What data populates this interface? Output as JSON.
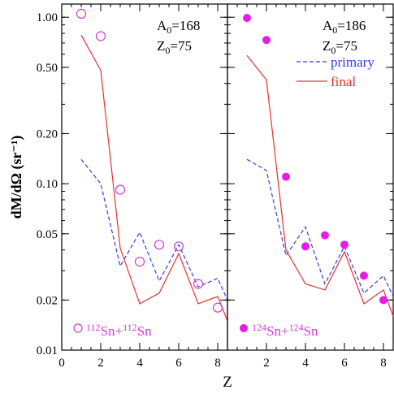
{
  "chart_data": [
    {
      "type": "line",
      "panel": "left",
      "annotation_lines": [
        {
          "id": "A0",
          "main": "A",
          "sub": "0",
          "value": "=168"
        },
        {
          "id": "Z0",
          "main": "Z",
          "sub": "0",
          "value": "=75"
        }
      ],
      "system": {
        "mass1": "112",
        "el1": "Sn",
        "plus": "+",
        "mass2": "112",
        "el2": "Sn"
      },
      "xlabel": "Z",
      "ylabel": "dM/dΩ (sr⁻¹)",
      "xlim": [
        0,
        8.5
      ],
      "ylim": [
        0.01,
        1.2
      ],
      "yscale": "log",
      "xticks": [
        0,
        2,
        4,
        6,
        8
      ],
      "yticks": [
        {
          "value": 0.01,
          "label": "0.01"
        },
        {
          "value": 0.02,
          "label": "0.02"
        },
        {
          "value": 0.05,
          "label": "0.05"
        },
        {
          "value": 0.1,
          "label": "0.10"
        },
        {
          "value": 0.2,
          "label": "0.20"
        },
        {
          "value": 0.5,
          "label": "0.50"
        },
        {
          "value": 1.0,
          "label": "1.00"
        }
      ],
      "series": [
        {
          "style": "primary",
          "color": "#3b3bdc",
          "dash": true,
          "x": [
            1,
            2,
            3,
            4,
            5,
            6,
            7,
            8,
            8.5
          ],
          "y": [
            0.14,
            0.1,
            0.032,
            0.051,
            0.026,
            0.043,
            0.024,
            0.027,
            0.02
          ]
        },
        {
          "style": "final",
          "color": "#e83030",
          "dash": false,
          "x": [
            1,
            2,
            3,
            4,
            5,
            6,
            7,
            8,
            8.5
          ],
          "y": [
            0.78,
            0.48,
            0.041,
            0.019,
            0.022,
            0.038,
            0.019,
            0.021,
            0.015
          ]
        }
      ],
      "points": {
        "color": "#d63ad6",
        "filled": false,
        "x": [
          1,
          2,
          3,
          4,
          5,
          6,
          7,
          8
        ],
        "y": [
          1.05,
          0.77,
          0.092,
          0.034,
          0.043,
          0.042,
          0.025,
          0.018
        ]
      }
    },
    {
      "type": "line",
      "panel": "right",
      "annotation_lines": [
        {
          "id": "A0",
          "main": "A",
          "sub": "0",
          "value": "=186"
        },
        {
          "id": "Z0",
          "main": "Z",
          "sub": "0",
          "value": "=75"
        }
      ],
      "system": {
        "mass1": "124",
        "el1": "Sn",
        "plus": "+",
        "mass2": "124",
        "el2": "Sn"
      },
      "legend": [
        {
          "label": "primary",
          "color": "#3b3bdc",
          "dash": true
        },
        {
          "label": "final",
          "color": "#e83030",
          "dash": false
        }
      ],
      "xlabel": "Z",
      "xlim": [
        0,
        8.5
      ],
      "ylim": [
        0.01,
        1.2
      ],
      "yscale": "log",
      "xticks": [
        2,
        4,
        6,
        8
      ],
      "series": [
        {
          "style": "primary",
          "color": "#3b3bdc",
          "dash": true,
          "x": [
            1,
            2,
            3,
            4,
            5,
            6,
            7,
            8,
            8.5
          ],
          "y": [
            0.14,
            0.12,
            0.037,
            0.055,
            0.025,
            0.042,
            0.022,
            0.028,
            0.021
          ]
        },
        {
          "style": "final",
          "color": "#e83030",
          "dash": false,
          "x": [
            1,
            2,
            3,
            4,
            5,
            6,
            7,
            8,
            8.5
          ],
          "y": [
            0.59,
            0.42,
            0.04,
            0.025,
            0.023,
            0.039,
            0.019,
            0.023,
            0.016
          ]
        }
      ],
      "points": {
        "color": "#e61be6",
        "filled": true,
        "x": [
          1,
          2,
          3,
          4,
          5,
          6,
          7,
          8
        ],
        "y": [
          0.99,
          0.73,
          0.11,
          0.042,
          0.049,
          0.043,
          0.028,
          0.02
        ]
      }
    }
  ]
}
